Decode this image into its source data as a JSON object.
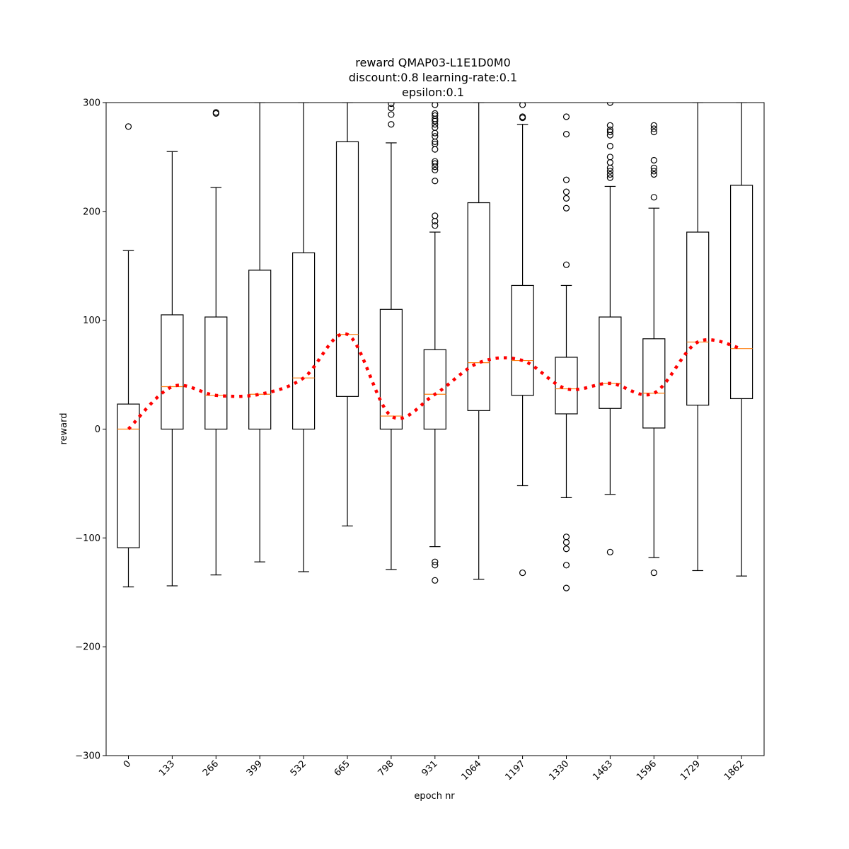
{
  "chart_data": {
    "type": "boxplot",
    "title_lines": [
      "reward QMAP03-L1E1D0M0",
      "discount:0.8 learning-rate:0.1",
      "epsilon:0.1"
    ],
    "xlabel": "epoch nr",
    "ylabel": "reward",
    "ylim": [
      -300,
      300
    ],
    "yticks": [
      -300,
      -200,
      -100,
      0,
      100,
      200,
      300
    ],
    "ytick_labels": [
      "−300",
      "−200",
      "−100",
      "0",
      "100",
      "200",
      "300"
    ],
    "categories": [
      "0",
      "133",
      "266",
      "399",
      "532",
      "665",
      "798",
      "931",
      "1064",
      "1197",
      "1330",
      "1463",
      "1596",
      "1729",
      "1862"
    ],
    "boxes": [
      {
        "q1": -109,
        "median": 0,
        "q3": 23,
        "whisker_low": -145,
        "whisker_high": 164,
        "outliers": [
          278
        ]
      },
      {
        "q1": 0,
        "median": 39,
        "q3": 105,
        "whisker_low": -144,
        "whisker_high": 255,
        "outliers": []
      },
      {
        "q1": 0,
        "median": 31,
        "q3": 103,
        "whisker_low": -134,
        "whisker_high": 222,
        "outliers": [
          290,
          291
        ]
      },
      {
        "q1": 0,
        "median": 32,
        "q3": 146,
        "whisker_low": -122,
        "whisker_high": 300,
        "outliers": []
      },
      {
        "q1": 0,
        "median": 47,
        "q3": 162,
        "whisker_low": -131,
        "whisker_high": 300,
        "outliers": []
      },
      {
        "q1": 30,
        "median": 87,
        "q3": 264,
        "whisker_low": -89,
        "whisker_high": 300,
        "outliers": []
      },
      {
        "q1": 0,
        "median": 12,
        "q3": 110,
        "whisker_low": -129,
        "whisker_high": 263,
        "outliers": [
          280,
          289,
          295,
          299
        ]
      },
      {
        "q1": 0,
        "median": 32,
        "q3": 73,
        "whisker_low": -108,
        "whisker_high": 181,
        "outliers": [
          -139,
          -125,
          -122,
          187,
          191,
          196,
          228,
          238,
          241,
          244,
          246,
          257,
          262,
          264,
          269,
          272,
          277,
          280,
          283,
          285,
          288,
          290,
          298
        ]
      },
      {
        "q1": 17,
        "median": 61,
        "q3": 208,
        "whisker_low": -138,
        "whisker_high": 300,
        "outliers": []
      },
      {
        "q1": 31,
        "median": 63,
        "q3": 132,
        "whisker_low": -52,
        "whisker_high": 280,
        "outliers": [
          -132,
          286,
          287,
          298
        ]
      },
      {
        "q1": 14,
        "median": 37,
        "q3": 66,
        "whisker_low": -63,
        "whisker_high": 132,
        "outliers": [
          -146,
          -125,
          -110,
          -104,
          -99,
          151,
          203,
          212,
          218,
          229,
          271,
          287
        ]
      },
      {
        "q1": 19,
        "median": 42,
        "q3": 103,
        "whisker_low": -60,
        "whisker_high": 223,
        "outliers": [
          -113,
          231,
          234,
          237,
          240,
          245,
          250,
          260,
          270,
          273,
          275,
          279,
          300
        ]
      },
      {
        "q1": 1,
        "median": 33,
        "q3": 83,
        "whisker_low": -118,
        "whisker_high": 203,
        "outliers": [
          -132,
          213,
          234,
          237,
          240,
          247,
          273,
          276,
          279
        ]
      },
      {
        "q1": 22,
        "median": 80,
        "q3": 181,
        "whisker_low": -130,
        "whisker_high": 300,
        "outliers": []
      },
      {
        "q1": 28,
        "median": 74,
        "q3": 224,
        "whisker_low": -135,
        "whisker_high": 300,
        "outliers": []
      }
    ],
    "mean_line": {
      "style": "dotted",
      "color": "#ff0000"
    },
    "colors": {
      "box": "#000000",
      "median": "#ff7f0e",
      "mean_line": "#ff0000",
      "background": "#ffffff"
    },
    "grid": false
  }
}
